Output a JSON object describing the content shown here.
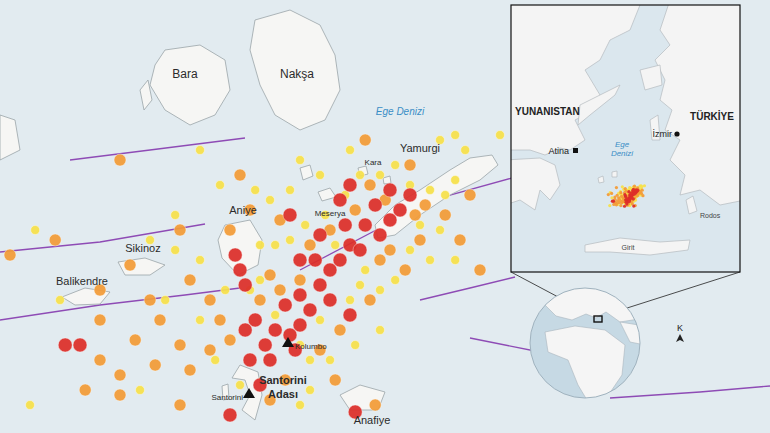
{
  "chart_data": {
    "type": "scatter",
    "xlim": [
      24.8,
      26.725
    ],
    "ylim": [
      36.434,
      37.3
    ],
    "tick_labels": false,
    "grid": false,
    "series": [
      {
        "color": "#f7e14b",
        "x": [
          25.938,
          25.9,
          25.963,
          25.675,
          25.6,
          25.55,
          25.525,
          25.475,
          25.438,
          25.35,
          25.238,
          25.3,
          25.238,
          25.175,
          24.888,
          25.45,
          25.488,
          25.525,
          25.563,
          25.613,
          25.663,
          25.7,
          25.75,
          25.788,
          25.825,
          25.875,
          25.913,
          25.85,
          25.9,
          25.938,
          25.875,
          25.825,
          25.788,
          25.75,
          25.7,
          25.675,
          25.6,
          25.55,
          25.488,
          25.45,
          25.425,
          25.363,
          25.3,
          25.338,
          25.4,
          25.575,
          25.625,
          25.688,
          25.75,
          25.575,
          25.938,
          26.05,
          25.55,
          25.213,
          25.15,
          24.95,
          24.875,
          25.713,
          25.638,
          25.3
        ],
        "y": [
          37.03,
          37.02,
          37.0,
          37.0,
          36.95,
          36.98,
          36.92,
          36.9,
          36.92,
          36.93,
          36.87,
          36.78,
          36.8,
          36.82,
          36.84,
          36.81,
          36.81,
          36.82,
          36.85,
          36.87,
          36.91,
          36.95,
          36.95,
          36.97,
          36.93,
          36.92,
          36.91,
          36.85,
          36.84,
          36.78,
          36.78,
          36.8,
          36.74,
          36.72,
          36.73,
          36.7,
          36.66,
          36.61,
          36.67,
          36.74,
          36.72,
          36.72,
          36.66,
          36.58,
          36.53,
          36.58,
          36.58,
          36.61,
          36.64,
          36.52,
          36.94,
          37.03,
          36.49,
          36.7,
          36.52,
          36.7,
          36.49,
          36.76,
          36.81,
          37.0
        ]
      },
      {
        "color": "#f39c38",
        "x": [
          25.1,
          25.4,
          25.25,
          25.125,
          24.825,
          24.938,
          25.05,
          25.175,
          25.275,
          25.325,
          25.35,
          25.2,
          25.05,
          25.25,
          25.325,
          25.375,
          25.275,
          25.188,
          25.1,
          25.05,
          25.013,
          25.1,
          25.138,
          25.45,
          25.5,
          25.475,
          25.55,
          25.575,
          25.625,
          25.688,
          25.725,
          25.763,
          25.838,
          25.863,
          25.75,
          25.775,
          25.85,
          25.913,
          25.975,
          25.95,
          25.813,
          25.725,
          25.65,
          25.6,
          25.638,
          25.738,
          25.513,
          25.475,
          25.25,
          25.713,
          25.825,
          26.0,
          25.375,
          25.425,
          25.5
        ],
        "y": [
          36.98,
          36.95,
          36.84,
          36.77,
          36.79,
          36.82,
          36.72,
          36.7,
          36.74,
          36.7,
          36.66,
          36.66,
          36.66,
          36.61,
          36.6,
          36.62,
          36.56,
          36.57,
          36.55,
          36.58,
          36.52,
          36.51,
          36.62,
          36.7,
          36.72,
          36.75,
          36.74,
          36.81,
          36.84,
          36.88,
          36.93,
          36.9,
          36.87,
          36.89,
          36.78,
          36.8,
          36.82,
          36.87,
          36.91,
          36.82,
          36.76,
          36.7,
          36.64,
          36.6,
          36.54,
          36.49,
          36.54,
          36.5,
          36.49,
          37.02,
          36.97,
          36.76,
          36.84,
          36.88,
          36.86
        ]
      },
      {
        "color": "#dd2f2a",
        "x": [
          25.525,
          25.55,
          25.488,
          25.463,
          25.438,
          25.413,
          25.513,
          25.55,
          25.575,
          25.6,
          25.625,
          25.65,
          25.588,
          25.675,
          25.7,
          25.663,
          25.713,
          25.75,
          25.775,
          25.738,
          25.8,
          25.775,
          25.825,
          25.65,
          25.6,
          25.55,
          25.625,
          25.675,
          25.425,
          25.475,
          25.388,
          25.4,
          25.0,
          24.963,
          25.375,
          25.688,
          25.45,
          25.525,
          25.675,
          25.538,
          25.413
        ],
        "y": [
          36.63,
          36.65,
          36.64,
          36.61,
          36.66,
          36.64,
          36.69,
          36.71,
          36.68,
          36.73,
          36.76,
          36.78,
          36.78,
          36.81,
          36.8,
          36.85,
          36.85,
          36.83,
          36.86,
          36.89,
          36.88,
          36.92,
          36.91,
          36.9,
          36.83,
          36.78,
          36.7,
          36.67,
          36.58,
          36.58,
          36.79,
          36.76,
          36.61,
          36.61,
          36.47,
          36.476,
          36.53,
          36.87,
          36.93,
          36.6,
          36.73
        ]
      }
    ]
  },
  "map": {
    "labels": [
      "Bara",
      "Nakşa",
      "Ege Denizi",
      "Meserya",
      "Kara",
      "Yamurgi",
      "Aniye",
      "Sikinoz",
      "Balikendre",
      "Kolumbo",
      "Santorini",
      "Santorini Adası",
      "Anafiye"
    ],
    "inset": {
      "countries": [
        "YUNANISTAN",
        "TÜRKİYE"
      ],
      "cities": [
        "Atina",
        "İzmir"
      ],
      "sea": "Ege Denizi",
      "islands": [
        "Girit",
        "Rodos"
      ]
    },
    "north": "K"
  }
}
